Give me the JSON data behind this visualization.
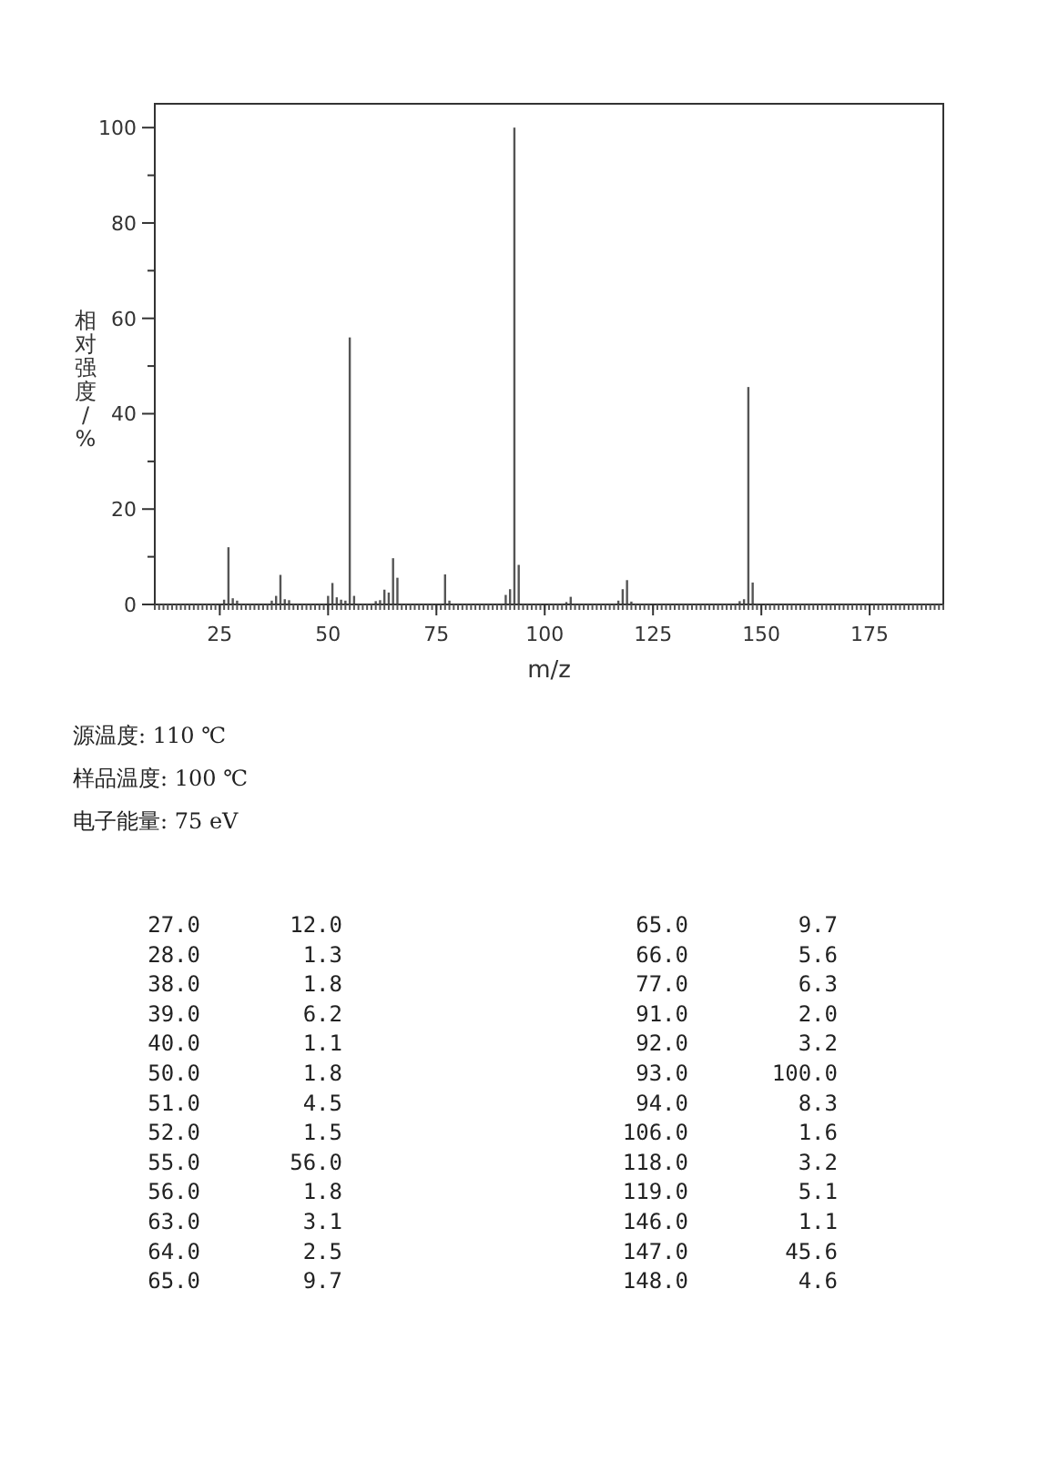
{
  "chart_data": [
    {
      "type": "bar",
      "xlabel": "m/z",
      "ylabel": "相对强度/%",
      "x": [
        26,
        27,
        28,
        29,
        37,
        38,
        39,
        40,
        41,
        50,
        51,
        52,
        53,
        54,
        55,
        56,
        61,
        62,
        63,
        64,
        65,
        66,
        77,
        78,
        91,
        92,
        93,
        94,
        105,
        106,
        117,
        118,
        119,
        120,
        145,
        146,
        147,
        148
      ],
      "values": [
        1.0,
        12.0,
        1.3,
        0.8,
        0.8,
        1.8,
        6.2,
        1.1,
        0.9,
        1.8,
        4.5,
        1.5,
        1.0,
        0.8,
        56.0,
        1.8,
        0.7,
        0.9,
        3.1,
        2.5,
        9.7,
        5.6,
        6.3,
        0.8,
        2.0,
        3.2,
        100.0,
        8.3,
        0.5,
        1.6,
        0.8,
        3.2,
        5.1,
        0.6,
        0.7,
        1.1,
        45.6,
        4.6
      ],
      "color": "#555555",
      "grid": false,
      "xlim": [
        10,
        192
      ],
      "xticks": [
        25,
        50,
        75,
        100,
        125,
        150,
        175
      ],
      "ylim": [
        0,
        105
      ],
      "yticks": [
        0,
        {
          "value": 10,
          "label": null
        },
        20,
        {
          "value": 30,
          "label": null
        },
        40,
        {
          "value": 50,
          "label": null
        },
        60,
        {
          "value": 70,
          "label": null
        },
        80,
        {
          "value": 90,
          "label": null
        },
        100
      ],
      "annotations": [
        "源温度: 110 ℃",
        "样品温度: 100 ℃",
        "电子能量: 75 eV"
      ]
    },
    {
      "type": "other",
      "categories": [
        "27.0",
        "28.0",
        "38.0",
        "39.0",
        "40.0",
        "50.0",
        "51.0",
        "52.0",
        "55.0",
        "56.0",
        "63.0",
        "64.0",
        "65.0",
        "65.0",
        "66.0",
        "77.0",
        "91.0",
        "92.0",
        "93.0",
        "94.0",
        "106.0",
        "118.0",
        "119.0",
        "146.0",
        "147.0",
        "148.0"
      ],
      "value_labels": [
        "12.0",
        "1.3",
        "1.8",
        "6.2",
        "1.1",
        "1.8",
        "4.5",
        "1.5",
        "56.0",
        "1.8",
        "3.1",
        "2.5",
        "9.7",
        "9.7",
        "5.6",
        "6.3",
        "2.0",
        "3.2",
        "100.0",
        "8.3",
        "1.6",
        "3.2",
        "5.1",
        "1.1",
        "45.6",
        "4.6"
      ]
    }
  ]
}
